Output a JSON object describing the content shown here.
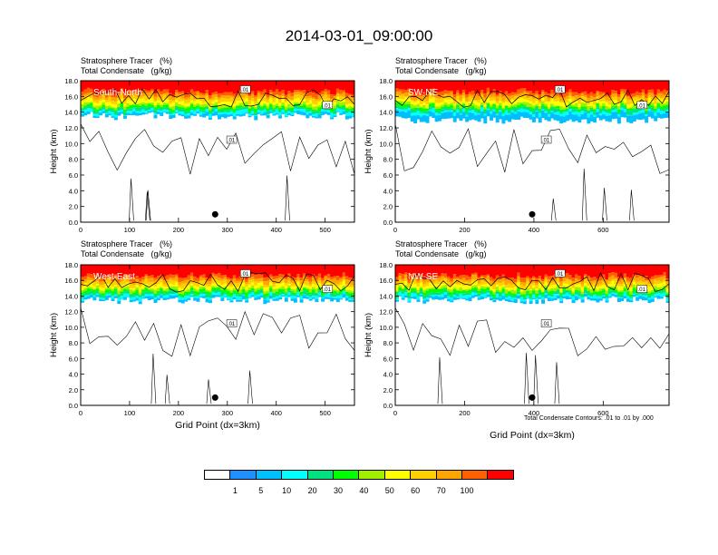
{
  "title": "2014-03-01_09:00:00",
  "panels": [
    {
      "id": "south-north",
      "label": "South-North",
      "title_line1": "Stratosphere Tracer   (%)",
      "title_line2": "Total Condensate   (g/kg)",
      "ylabel": "Height (km)",
      "xlabel": "",
      "xticks": [
        "0",
        "100",
        "200",
        "300",
        "400",
        "500"
      ],
      "xmax": 560
    },
    {
      "id": "sw-ne",
      "label": "SW-NE",
      "title_line1": "Stratosphere Tracer   (%)",
      "title_line2": "Total Condensate   (g/kg)",
      "ylabel": "Height (km)",
      "xlabel": "",
      "xticks": [
        "0",
        "200",
        "400",
        "600"
      ],
      "xmax": 790
    },
    {
      "id": "west-east",
      "label": "West-East",
      "title_line1": "Stratosphere Tracer   (%)",
      "title_line2": "Total Condensate   (g/kg)",
      "ylabel": "Height (km)",
      "xlabel": "Grid Point (dx=3km)",
      "xticks": [
        "0",
        "100",
        "200",
        "300",
        "400",
        "500"
      ],
      "xmax": 560
    },
    {
      "id": "nw-se",
      "label": "NW-SE",
      "title_line1": "Stratosphere Tracer   (%)",
      "title_line2": "Total Condensate   (g/kg)",
      "ylabel": "Height (km)",
      "xlabel": "Grid Point (dx=3km)",
      "xticks": [
        "0",
        "200",
        "400",
        "600"
      ],
      "xmax": 790
    }
  ],
  "yticks": [
    "0.0",
    "2.0",
    "4.0",
    "6.0",
    "8.0",
    "10.0",
    "12.0",
    "14.0",
    "16.0",
    "18.0"
  ],
  "contour_note": "Total Condensate Contours: .01 to .01 by .000",
  "contour_label": ".01",
  "colorbar": {
    "labels": [
      "1",
      "5",
      "10",
      "20",
      "30",
      "40",
      "50",
      "60",
      "70",
      "100"
    ],
    "colors": [
      "#ffffff",
      "#1e90ff",
      "#00bfff",
      "#00ffff",
      "#00e080",
      "#00ff00",
      "#a0f000",
      "#ffff00",
      "#ffd000",
      "#ffa500",
      "#ff6000",
      "#ff0000"
    ]
  },
  "chart_data": {
    "type": "heatmap",
    "title": "2014-03-01_09:00:00",
    "variables": [
      "Stratosphere Tracer (%)",
      "Total Condensate (g/kg)"
    ],
    "ylabel": "Height (km)",
    "xlabel": "Grid Point (dx=3km)",
    "ylim": [
      0,
      18
    ],
    "color_levels": [
      1,
      5,
      10,
      20,
      30,
      40,
      50,
      60,
      70,
      100
    ],
    "contour_levels": [
      0.01
    ],
    "cross_sections": [
      {
        "name": "South-North",
        "xlim": [
          0,
          560
        ],
        "marker_x": 275,
        "marker_height_km": 1.0,
        "tracer_band_km": [
          13.5,
          18
        ]
      },
      {
        "name": "SW-NE",
        "xlim": [
          0,
          790
        ],
        "marker_x": 395,
        "marker_height_km": 1.0,
        "tracer_band_km": [
          13.0,
          18
        ]
      },
      {
        "name": "West-East",
        "xlim": [
          0,
          560
        ],
        "marker_x": 275,
        "marker_height_km": 1.0,
        "tracer_band_km": [
          13.5,
          18
        ]
      },
      {
        "name": "NW-SE",
        "xlim": [
          0,
          790
        ],
        "marker_x": 395,
        "marker_height_km": 1.0,
        "tracer_band_km": [
          13.5,
          18
        ]
      }
    ]
  }
}
